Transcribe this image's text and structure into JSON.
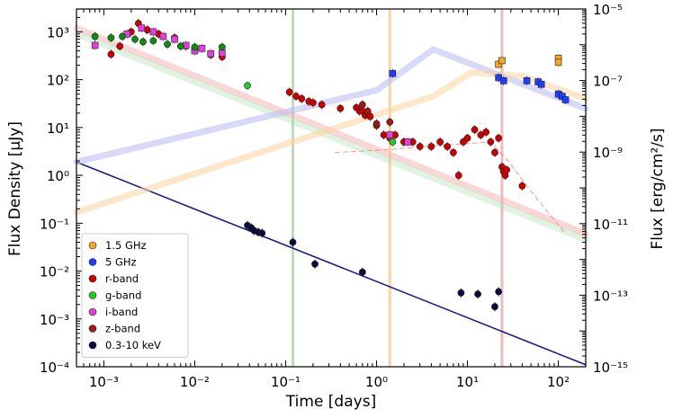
{
  "chart_data": {
    "type": "scatter",
    "xlabel": "Time [days]",
    "ylabel": "Flux Density [μJy]",
    "y2label": "Flux [erg/cm²/s]",
    "x_scale": "log",
    "y_scale": "log",
    "y2_scale": "log",
    "xlim": [
      0.0005,
      200
    ],
    "ylim": [
      0.0001,
      3000
    ],
    "y2lim": [
      1e-15,
      1e-05
    ],
    "x_ticks": [
      {
        "value": 0.001,
        "label": "10⁻³"
      },
      {
        "value": 0.01,
        "label": "10⁻²"
      },
      {
        "value": 0.1,
        "label": "10⁻¹"
      },
      {
        "value": 1,
        "label": "10⁰"
      },
      {
        "value": 10,
        "label": "10¹"
      },
      {
        "value": 100,
        "label": "10²"
      }
    ],
    "y_ticks": [
      {
        "value": 1000,
        "label": "10³"
      },
      {
        "value": 100,
        "label": "10²"
      },
      {
        "value": 10,
        "label": "10¹"
      },
      {
        "value": 1,
        "label": "10⁰"
      },
      {
        "value": 0.1,
        "label": "10⁻¹"
      },
      {
        "value": 0.01,
        "label": "10⁻²"
      },
      {
        "value": 0.001,
        "label": "10⁻³"
      },
      {
        "value": 0.0001,
        "label": "10⁻⁴"
      }
    ],
    "y2_ticks": [
      {
        "value": 1e-05,
        "label": "10⁻⁵"
      },
      {
        "value": 1e-07,
        "label": "10⁻⁷"
      },
      {
        "value": 1e-09,
        "label": "10⁻⁹"
      },
      {
        "value": 1e-11,
        "label": "10⁻¹¹"
      },
      {
        "value": 1e-13,
        "label": "10⁻¹³"
      },
      {
        "value": 1e-15,
        "label": "10⁻¹⁵"
      }
    ],
    "legend_position": "lower-left",
    "vertical_lines": [
      {
        "x": 0.12,
        "color": "#9fd29f"
      },
      {
        "x": 1.4,
        "color": "#f7c27a"
      },
      {
        "x": 24,
        "color": "#e8a0a0"
      }
    ],
    "series": [
      {
        "name": "1.5 GHz",
        "color": "#f5a623",
        "marker": "square",
        "axis": "left",
        "points": [
          [
            22,
            210
          ],
          [
            24,
            250
          ],
          [
            100,
            280
          ],
          [
            100,
            230
          ]
        ]
      },
      {
        "name": "5 GHz",
        "color": "#1f3fff",
        "marker": "square",
        "axis": "left",
        "points": [
          [
            1.5,
            135
          ],
          [
            22,
            110
          ],
          [
            25,
            95
          ],
          [
            45,
            95
          ],
          [
            60,
            90
          ],
          [
            65,
            80
          ],
          [
            100,
            50
          ],
          [
            110,
            45
          ],
          [
            120,
            38
          ]
        ]
      },
      {
        "name": "r-band",
        "color": "#cc0000",
        "marker": "circle",
        "axis": "left",
        "points": [
          [
            0.0012,
            340
          ],
          [
            0.0015,
            500
          ],
          [
            0.002,
            1000
          ],
          [
            0.0024,
            1500
          ],
          [
            0.003,
            1100
          ],
          [
            0.004,
            900
          ],
          [
            0.006,
            750
          ],
          [
            0.008,
            500
          ],
          [
            0.01,
            420
          ],
          [
            0.015,
            330
          ],
          [
            0.02,
            300
          ],
          [
            0.11,
            55
          ],
          [
            0.13,
            45
          ],
          [
            0.15,
            40
          ],
          [
            0.18,
            35
          ],
          [
            0.2,
            33
          ],
          [
            0.25,
            30
          ],
          [
            0.4,
            25
          ],
          [
            0.6,
            26
          ],
          [
            0.65,
            22
          ],
          [
            0.7,
            22
          ],
          [
            0.75,
            18
          ],
          [
            0.8,
            20
          ],
          [
            0.85,
            17
          ],
          [
            1.0,
            11
          ],
          [
            1.2,
            7
          ],
          [
            1.4,
            6
          ],
          [
            1.6,
            7
          ],
          [
            2.0,
            5
          ],
          [
            2.5,
            5
          ],
          [
            3,
            4
          ],
          [
            4,
            4
          ],
          [
            5,
            5
          ],
          [
            6,
            4
          ],
          [
            7,
            3
          ],
          [
            8,
            1
          ],
          [
            9,
            5
          ],
          [
            10,
            6
          ],
          [
            12,
            9
          ],
          [
            14,
            7
          ],
          [
            16,
            8
          ],
          [
            18,
            5
          ],
          [
            20,
            3
          ],
          [
            22,
            6
          ],
          [
            24,
            1.5
          ],
          [
            25,
            1.2
          ],
          [
            26,
            1
          ],
          [
            27,
            1.3
          ],
          [
            40,
            0.6
          ]
        ]
      },
      {
        "name": "g-band",
        "color": "#22cc22",
        "marker": "circle",
        "axis": "left",
        "points": [
          [
            0.038,
            75
          ],
          [
            1.5,
            5
          ]
        ]
      },
      {
        "name": "i-band",
        "color": "#e040e0",
        "marker": "square",
        "axis": "left",
        "points": [
          [
            0.0008,
            520
          ],
          [
            0.0018,
            900
          ],
          [
            0.0026,
            1200
          ],
          [
            0.0035,
            1000
          ],
          [
            0.0045,
            800
          ],
          [
            0.006,
            700
          ],
          [
            0.008,
            520
          ],
          [
            0.01,
            400
          ],
          [
            0.012,
            450
          ],
          [
            0.015,
            350
          ],
          [
            0.02,
            360
          ],
          [
            1.4,
            7
          ],
          [
            2.2,
            5
          ]
        ]
      },
      {
        "name": "z-band",
        "color": "#a01818",
        "marker": "circle",
        "axis": "left",
        "points": [
          [
            0.7,
            30
          ],
          [
            0.8,
            22
          ],
          [
            1.0,
            12
          ],
          [
            1.4,
            13
          ]
        ]
      },
      {
        "name": "",
        "color": "#138a13",
        "marker": "circle",
        "axis": "left",
        "points": [
          [
            0.0008,
            800
          ],
          [
            0.0012,
            750
          ],
          [
            0.0016,
            800
          ],
          [
            0.0022,
            700
          ],
          [
            0.0027,
            620
          ],
          [
            0.0035,
            650
          ],
          [
            0.005,
            550
          ],
          [
            0.007,
            500
          ],
          [
            0.01,
            480
          ],
          [
            0.02,
            480
          ]
        ]
      },
      {
        "name": "0.3-10 keV",
        "color": "#0b0b40",
        "marker": "circle",
        "axis": "left",
        "points": [
          [
            0.038,
            0.09
          ],
          [
            0.042,
            0.08
          ],
          [
            0.045,
            0.07
          ],
          [
            0.05,
            0.065
          ],
          [
            0.055,
            0.062
          ],
          [
            0.12,
            0.04
          ],
          [
            0.21,
            0.014
          ],
          [
            0.7,
            0.0095
          ],
          [
            8.5,
            0.0035
          ],
          [
            13,
            0.0033
          ],
          [
            20,
            0.0018
          ],
          [
            22,
            0.0037
          ]
        ]
      }
    ],
    "model_lines": [
      {
        "color": "#1a1a8c",
        "width": 1.6,
        "opacity": 1,
        "dash": "",
        "points": [
          [
            0.0005,
            1.9
          ],
          [
            200,
            0.00011
          ]
        ]
      },
      {
        "color": "#f4a6a6",
        "width": 7,
        "opacity": 0.45,
        "dash": "",
        "points": [
          [
            0.0005,
            1200
          ],
          [
            200,
            0.06
          ]
        ]
      },
      {
        "color": "#a6dca6",
        "width": 7,
        "opacity": 0.35,
        "dash": "",
        "points": [
          [
            0.0005,
            900
          ],
          [
            200,
            0.045
          ]
        ]
      },
      {
        "color": "#b8b8f4",
        "width": 7,
        "opacity": 0.55,
        "dash": "",
        "points": [
          [
            0.0005,
            1.9
          ],
          [
            1,
            60
          ],
          [
            4.2,
            430
          ],
          [
            200,
            25
          ]
        ]
      },
      {
        "color": "#fcd4a0",
        "width": 7,
        "opacity": 0.55,
        "dash": "",
        "points": [
          [
            0.0005,
            0.17
          ],
          [
            4.2,
            45
          ],
          [
            11,
            140
          ],
          [
            40,
            120
          ],
          [
            200,
            40
          ]
        ]
      },
      {
        "color": "#f08080",
        "width": 1.2,
        "opacity": 0.7,
        "dash": "5,4",
        "points": [
          [
            0.35,
            3
          ],
          [
            1.5,
            3.5
          ],
          [
            8,
            4.5
          ],
          [
            18,
            5
          ],
          [
            28,
            2
          ],
          [
            60,
            0.3
          ],
          [
            120,
            0.06
          ]
        ]
      }
    ]
  }
}
